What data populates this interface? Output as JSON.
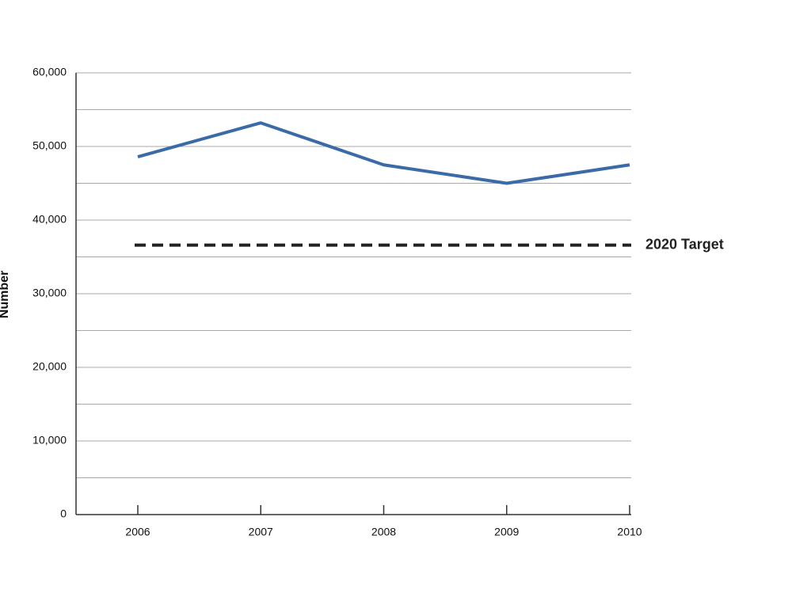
{
  "chart_data": {
    "type": "line",
    "y_label": "Number",
    "categories": [
      "2006",
      "2007",
      "2008",
      "2009",
      "2010"
    ],
    "values": [
      48600,
      53200,
      47500,
      45000,
      47500
    ],
    "color": "#3a6aa8",
    "reference_lines": [
      {
        "name": "2020 Target",
        "value": 36600,
        "color": "#222222"
      }
    ],
    "ylim": [
      0,
      60000
    ],
    "yticks": [
      0,
      {
        "value": 10000,
        "label": "10,000"
      },
      {
        "value": 20000,
        "label": "20,000"
      },
      {
        "value": 30000,
        "label": "30,000"
      },
      {
        "value": 40000,
        "label": "40,000"
      },
      {
        "value": 50000,
        "label": "50,000"
      },
      {
        "value": 60000,
        "label": "60,000"
      }
    ],
    "ygrid": [
      5000,
      10000,
      15000,
      20000,
      25000,
      30000,
      35000,
      40000,
      45000,
      50000,
      55000,
      60000
    ],
    "grid": true
  }
}
